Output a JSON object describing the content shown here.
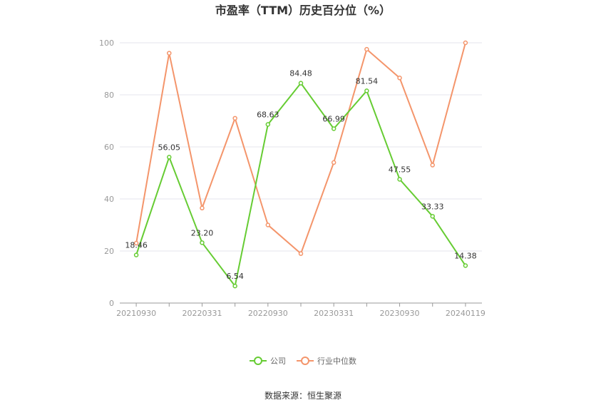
{
  "chart_data": {
    "type": "line",
    "title": "市盈率（TTM）历史百分位（%）",
    "x": [
      "20210930",
      "20211231",
      "20220331",
      "20220630",
      "20220930",
      "20221230",
      "20230331",
      "20230630",
      "20230930",
      "20231229",
      "20240119"
    ],
    "x_tick_labels": [
      "20210930",
      "20220331",
      "20220930",
      "20230331",
      "20230930",
      "20240119"
    ],
    "ylim": [
      0,
      100
    ],
    "y_ticks": [
      0,
      20,
      40,
      60,
      80,
      100
    ],
    "grid": true,
    "legend_position": "bottom",
    "series": [
      {
        "name": "公司",
        "color": "#66cc33",
        "values": [
          18.46,
          56.05,
          23.2,
          6.54,
          68.63,
          84.48,
          66.99,
          81.54,
          47.55,
          33.33,
          14.38
        ],
        "labels": [
          "18.46",
          "56.05",
          "23.20",
          "6.54",
          "68.63",
          "84.48",
          "66.99",
          "81.54",
          "47.55",
          "33.33",
          "14.38"
        ]
      },
      {
        "name": "行业中位数",
        "color": "#f4956b",
        "values": [
          23.0,
          96.0,
          36.5,
          71.0,
          30.0,
          19.0,
          54.0,
          97.5,
          86.5,
          53.0,
          100.0
        ]
      }
    ],
    "source": "数据来源：恒生聚源"
  }
}
